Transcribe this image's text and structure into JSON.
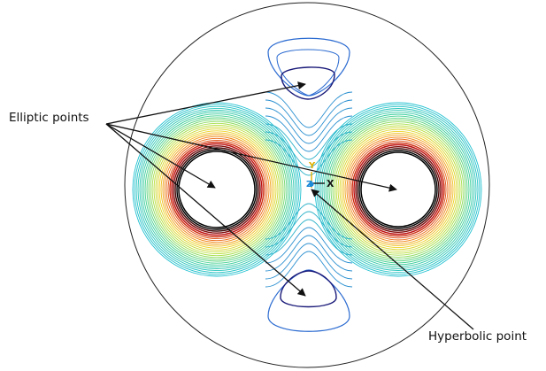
{
  "labels": {
    "elliptic": "Elliptic points",
    "hyperbolic": "Hyperbolic point"
  },
  "axes": {
    "y": "Y",
    "z": "Z",
    "x": "X"
  },
  "colors": {
    "background": "#ffffff",
    "boundary": "#222222",
    "inner_contour": "#1a1a7a",
    "outer_contour": "#2a6ad0",
    "mid_contour": "#2ab0c8",
    "field_gradient": [
      "#20c0d0",
      "#40d090",
      "#b0e040",
      "#f0d020",
      "#f07010",
      "#c01010",
      "#000000"
    ],
    "arrow": "#111111",
    "axis_y": "#e0b000",
    "axis_z": "#1d8ad8",
    "axis_x": "#111111"
  }
}
